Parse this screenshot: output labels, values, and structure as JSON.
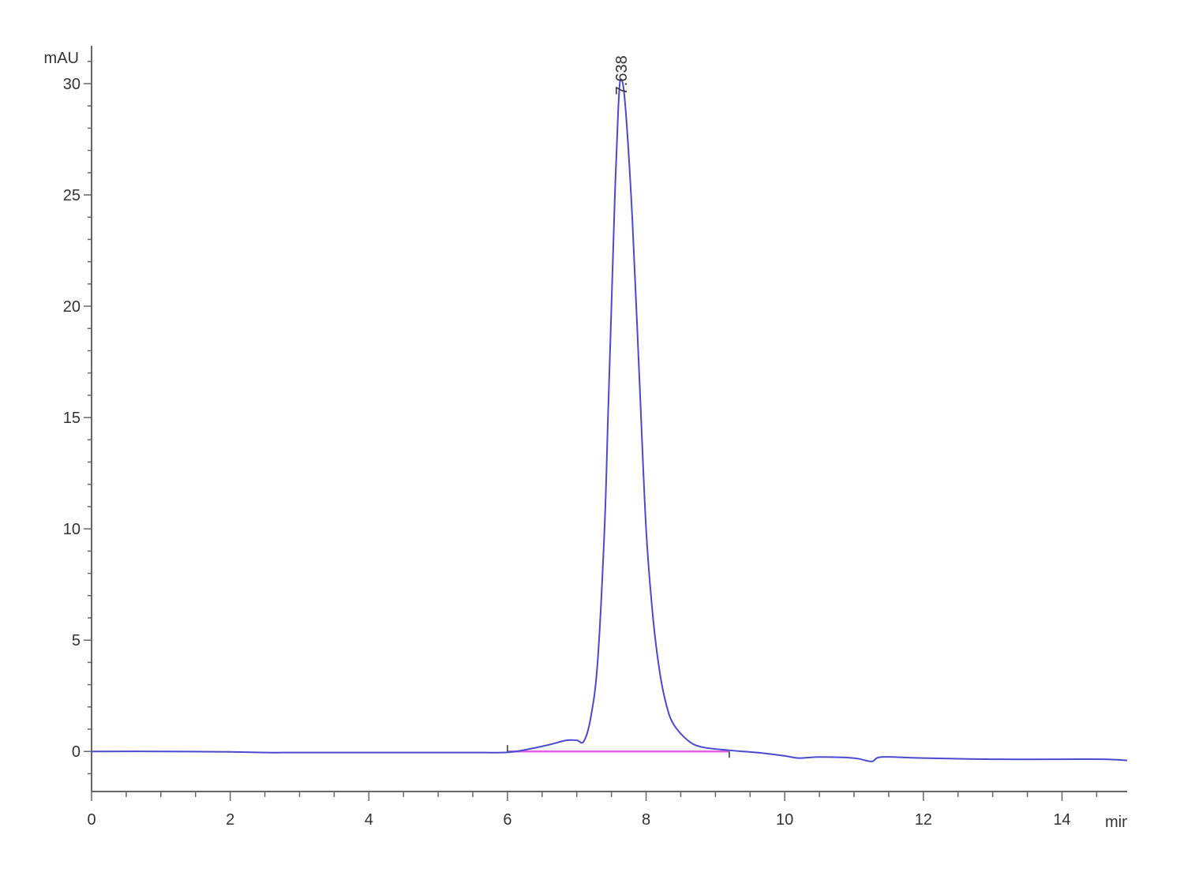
{
  "chart_data": {
    "type": "line",
    "title": "",
    "xlabel": "min",
    "ylabel": "mAU",
    "xlim": [
      0,
      14.94
    ],
    "ylim": [
      -1.8,
      31.7
    ],
    "x_ticks": [
      0,
      2,
      4,
      6,
      8,
      10,
      12,
      14
    ],
    "y_ticks": [
      0,
      5,
      10,
      15,
      20,
      25,
      30
    ],
    "grid": false,
    "legend": "none",
    "colors": {
      "trace": "#4a4ad0",
      "baseline": "#e060e0",
      "axis": "#666666"
    },
    "peak_labels": [
      {
        "x": 7.638,
        "y": 30.2,
        "text": "7.638"
      }
    ],
    "integration_baseline": {
      "x": [
        6.0,
        9.2
      ],
      "y": [
        0.0,
        0.0
      ]
    },
    "series": [
      {
        "x": [
          0,
          1,
          2,
          2.5,
          3,
          4,
          5,
          5.5,
          6,
          6.3,
          6.6,
          6.85,
          7.0,
          7.1,
          7.2,
          7.3,
          7.4,
          7.45,
          7.5,
          7.55,
          7.6,
          7.638,
          7.7,
          7.8,
          7.9,
          8.0,
          8.1,
          8.2,
          8.3,
          8.4,
          8.6,
          8.8,
          9.2,
          9.6,
          10,
          10.2,
          10.5,
          11,
          11.25,
          11.4,
          12,
          13,
          14,
          14.6,
          14.94
        ],
        "y": [
          0,
          0,
          -0.02,
          -0.05,
          -0.05,
          -0.05,
          -0.05,
          -0.05,
          -0.04,
          0.1,
          0.3,
          0.5,
          0.5,
          0.45,
          1.5,
          4,
          10,
          15,
          20,
          25,
          29,
          30.2,
          29,
          24,
          17,
          10,
          6,
          3.5,
          2,
          1.2,
          0.5,
          0.2,
          0.05,
          -0.05,
          -0.2,
          -0.3,
          -0.25,
          -0.3,
          -0.45,
          -0.25,
          -0.3,
          -0.35,
          -0.35,
          -0.35,
          -0.4
        ]
      }
    ]
  }
}
